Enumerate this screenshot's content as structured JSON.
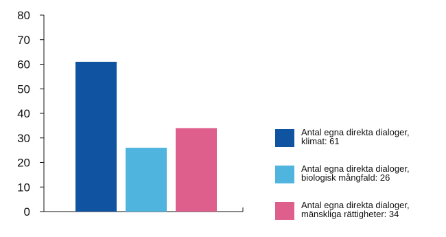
{
  "chart_data": {
    "type": "bar",
    "categories": [
      "klimat",
      "biologisk mångfald",
      "mänskliga rättigheter"
    ],
    "values": [
      61,
      26,
      34
    ],
    "colors": [
      "#1053a0",
      "#4fb5df",
      "#de5f8c"
    ],
    "ylim": [
      0,
      80
    ],
    "yticks": [
      "0",
      "10",
      "20",
      "30",
      "40",
      "50",
      "60",
      "70",
      "80"
    ],
    "grid": false,
    "legend_position": "right",
    "legend": [
      {
        "line1": "Antal egna direkta dialoger,",
        "line2": "klimat: 61",
        "color": "#1053a0"
      },
      {
        "line1": "Antal egna direkta dialoger,",
        "line2": "biologisk mångfald: 26",
        "color": "#4fb5df"
      },
      {
        "line1": "Antal egna direkta dialoger,",
        "line2": "mänskliga rättigheter: 34",
        "color": "#de5f8c"
      }
    ]
  }
}
